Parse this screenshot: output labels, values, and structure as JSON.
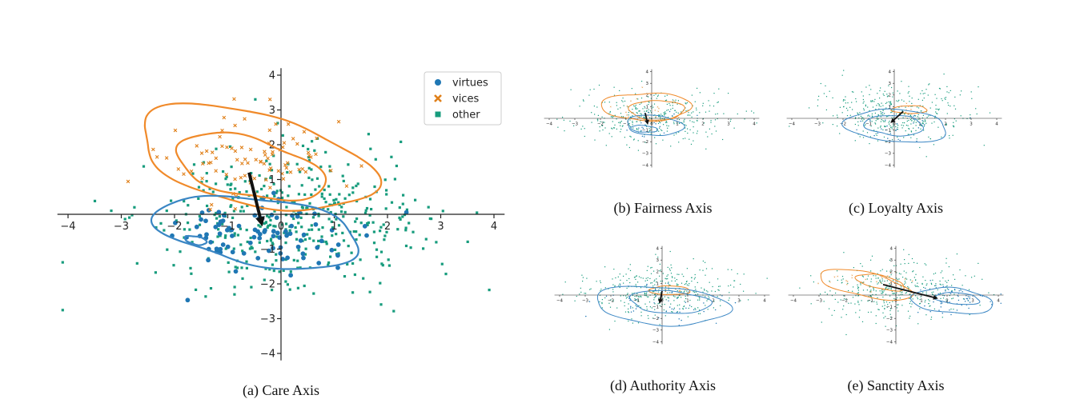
{
  "colors": {
    "virtues": "#1f77b4",
    "vices": "#e0801a",
    "other": "#179c7d",
    "virtue_contour": "#3a86c4",
    "vice_contour": "#f08a2a",
    "arrow": "#111111",
    "axis": "#222222"
  },
  "legend": {
    "items": [
      {
        "label": "virtues",
        "marker": "circle",
        "color": "#1f77b4"
      },
      {
        "label": "vices",
        "marker": "x",
        "color": "#e0801a"
      },
      {
        "label": "other",
        "marker": "square",
        "color": "#179c7d"
      }
    ]
  },
  "chart_data": [
    {
      "type": "scatter",
      "id": "care",
      "caption": "(a) Care Axis",
      "xlim": [
        -4.2,
        4.2
      ],
      "ylim": [
        -4.2,
        4.2
      ],
      "xticks": [
        -4,
        -3,
        -2,
        -1,
        0,
        1,
        2,
        3,
        4
      ],
      "yticks": [
        -4,
        -3,
        -2,
        -1,
        1,
        2,
        3,
        4
      ],
      "tick_labels": {
        "x": [
          "−4",
          "−3",
          "−2",
          "−1",
          "0",
          "1",
          "2",
          "3",
          "4"
        ],
        "y": [
          "−4",
          "−3",
          "−2",
          "−1",
          "1",
          "2",
          "3",
          "4"
        ]
      },
      "legend": true,
      "arrow": {
        "from": [
          -0.6,
          1.2
        ],
        "to": [
          -0.35,
          -0.35
        ]
      },
      "vices_contours": [
        {
          "center": [
            -0.5,
            1.6
          ],
          "rx": 2.2,
          "ry": 1.35,
          "rotate": -25
        },
        {
          "center": [
            -0.6,
            1.35
          ],
          "rx": 1.4,
          "ry": 0.85,
          "rotate": -25
        }
      ],
      "virtues_contours": [
        {
          "center": [
            -0.4,
            -0.5
          ],
          "rx": 1.85,
          "ry": 1.0,
          "rotate": -15
        },
        {
          "center": [
            -1.6,
            -0.75
          ],
          "rx": 0.2,
          "ry": 0.12,
          "rotate": -20
        }
      ],
      "clouds": {
        "other": {
          "center": [
            0.1,
            -0.2
          ],
          "sd": [
            1.3,
            0.95
          ],
          "n": 420
        },
        "virtues": {
          "center": [
            -0.4,
            -0.55
          ],
          "sd": [
            0.9,
            0.55
          ],
          "n": 90
        },
        "vices": {
          "center": [
            -0.55,
            1.55
          ],
          "sd": [
            0.85,
            0.6
          ],
          "n": 90
        }
      }
    },
    {
      "type": "scatter",
      "id": "fairness",
      "caption": "(b) Fairness Axis",
      "xlim": [
        -4.2,
        4.2
      ],
      "ylim": [
        -4.2,
        4.2
      ],
      "xticks": [
        -4,
        -3,
        -2,
        -1,
        0,
        1,
        2,
        3,
        4
      ],
      "yticks": [
        -4,
        -3,
        -2,
        -1,
        1,
        2,
        3,
        4
      ],
      "tick_labels": {
        "x": [
          "−4",
          "−3",
          "−2",
          "−1",
          "0",
          "1",
          "2",
          "3",
          "4"
        ],
        "y": [
          "−4",
          "−3",
          "−2",
          "−1",
          "1",
          "2",
          "3",
          "4"
        ]
      },
      "arrow": {
        "from": [
          -0.25,
          0.45
        ],
        "to": [
          -0.15,
          -0.55
        ]
      },
      "vices_contours": [
        {
          "center": [
            -0.2,
            1.0
          ],
          "rx": 1.65,
          "ry": 1.25,
          "rotate": 0
        },
        {
          "center": [
            0.2,
            0.7
          ],
          "rx": 1.0,
          "ry": 0.9,
          "rotate": 0
        }
      ],
      "virtues_contours": [
        {
          "center": [
            0.1,
            -0.6
          ],
          "rx": 1.05,
          "ry": 0.9,
          "rotate": -15
        },
        {
          "center": [
            -0.3,
            -0.9
          ],
          "rx": 0.5,
          "ry": 0.3,
          "rotate": -10
        }
      ],
      "clouds": {
        "other": {
          "center": [
            0.0,
            0.1
          ],
          "sd": [
            1.4,
            1.1
          ],
          "n": 380
        },
        "virtues": {
          "center": [
            0.0,
            -0.6
          ],
          "sd": [
            0.6,
            0.6
          ],
          "n": 20
        },
        "vices": {
          "center": [
            -0.2,
            0.9
          ],
          "sd": [
            0.7,
            0.7
          ],
          "n": 20
        }
      }
    },
    {
      "type": "scatter",
      "id": "loyalty",
      "caption": "(c) Loyalty Axis",
      "xlim": [
        -4.2,
        4.2
      ],
      "ylim": [
        -4.2,
        4.2
      ],
      "xticks": [
        -4,
        -3,
        -2,
        -1,
        0,
        1,
        2,
        3,
        4
      ],
      "yticks": [
        -4,
        -3,
        -2,
        -1,
        1,
        2,
        3,
        4
      ],
      "tick_labels": {
        "x": [
          "−4",
          "−3",
          "−2",
          "−1",
          "0",
          "1",
          "2",
          "3",
          "4"
        ],
        "y": [
          "−4",
          "−3",
          "−2",
          "−1",
          "1",
          "2",
          "3",
          "4"
        ]
      },
      "arrow": {
        "from": [
          0.35,
          0.6
        ],
        "to": [
          -0.15,
          -0.4
        ]
      },
      "vices_contours": [
        {
          "center": [
            0.6,
            0.75
          ],
          "rx": 0.65,
          "ry": 0.35,
          "rotate": 0
        }
      ],
      "virtues_contours": [
        {
          "center": [
            0.1,
            -0.65
          ],
          "rx": 1.9,
          "ry": 1.45,
          "rotate": -10
        },
        {
          "center": [
            0.0,
            -0.6
          ],
          "rx": 1.1,
          "ry": 0.9,
          "rotate": -10
        }
      ],
      "clouds": {
        "other": {
          "center": [
            0.0,
            0.4
          ],
          "sd": [
            1.4,
            1.2
          ],
          "n": 380
        },
        "virtues": {
          "center": [
            0.0,
            -0.6
          ],
          "sd": [
            0.9,
            0.7
          ],
          "n": 30
        },
        "vices": {
          "center": [
            0.6,
            0.75
          ],
          "sd": [
            0.3,
            0.2
          ],
          "n": 8
        }
      }
    },
    {
      "type": "scatter",
      "id": "authority",
      "caption": "(d) Authority Axis",
      "xlim": [
        -4.2,
        4.2
      ],
      "ylim": [
        -4.2,
        4.2
      ],
      "xticks": [
        -4,
        -3,
        -2,
        -1,
        0,
        1,
        2,
        3,
        4
      ],
      "yticks": [
        -4,
        -3,
        -2,
        -1,
        1,
        2,
        3,
        4
      ],
      "tick_labels": {
        "x": [
          "−4",
          "−3",
          "−2",
          "−1",
          "0",
          "1",
          "2",
          "3",
          "4"
        ],
        "y": [
          "−4",
          "−3",
          "−2",
          "−1",
          "1",
          "2",
          "3",
          "4"
        ]
      },
      "arrow": {
        "from": [
          0.0,
          0.35
        ],
        "to": [
          -0.1,
          -0.75
        ]
      },
      "vices_contours": [
        {
          "center": [
            0.3,
            0.4
          ],
          "rx": 0.75,
          "ry": 0.4,
          "rotate": 0
        }
      ],
      "virtues_contours": [
        {
          "center": [
            0.0,
            -0.9
          ],
          "rx": 2.5,
          "ry": 1.7,
          "rotate": -8
        },
        {
          "center": [
            0.3,
            -0.6
          ],
          "rx": 1.5,
          "ry": 1.0,
          "rotate": -8
        }
      ],
      "clouds": {
        "other": {
          "center": [
            0.0,
            0.4
          ],
          "sd": [
            1.4,
            1.2
          ],
          "n": 380
        },
        "virtues": {
          "center": [
            0.0,
            -0.9
          ],
          "sd": [
            1.2,
            0.8
          ],
          "n": 50
        },
        "vices": {
          "center": [
            0.3,
            0.4
          ],
          "sd": [
            0.35,
            0.2
          ],
          "n": 8
        }
      }
    },
    {
      "type": "scatter",
      "id": "sanctity",
      "caption": "(e) Sanctity Axis",
      "xlim": [
        -4.2,
        4.2
      ],
      "ylim": [
        -4.2,
        4.2
      ],
      "xticks": [
        -4,
        -3,
        -2,
        -1,
        0,
        1,
        2,
        3,
        4
      ],
      "yticks": [
        -4,
        -3,
        -2,
        -1,
        1,
        2,
        3,
        4
      ],
      "tick_labels": {
        "x": [
          "−4",
          "−3",
          "−2",
          "−1",
          "0",
          "1",
          "2",
          "3",
          "4"
        ],
        "y": [
          "−4",
          "−3",
          "−2",
          "−1",
          "1",
          "2",
          "3",
          "4"
        ]
      },
      "arrow": {
        "from": [
          -0.5,
          0.9
        ],
        "to": [
          1.65,
          -0.3
        ]
      },
      "vices_contours": [
        {
          "center": [
            -1.2,
            0.9
          ],
          "rx": 1.9,
          "ry": 1.0,
          "rotate": -30
        },
        {
          "center": [
            -0.6,
            1.1
          ],
          "rx": 1.0,
          "ry": 0.55,
          "rotate": -30
        }
      ],
      "virtues_contours": [
        {
          "center": [
            2.2,
            -0.5
          ],
          "rx": 1.55,
          "ry": 1.1,
          "rotate": -10
        },
        {
          "center": [
            2.4,
            -0.3
          ],
          "rx": 0.85,
          "ry": 0.5,
          "rotate": -10
        }
      ],
      "clouds": {
        "other": {
          "center": [
            0.0,
            0.4
          ],
          "sd": [
            1.4,
            1.2
          ],
          "n": 380
        },
        "virtues": {
          "center": [
            2.2,
            -0.4
          ],
          "sd": [
            0.8,
            0.6
          ],
          "n": 60
        },
        "vices": {
          "center": [
            -0.8,
            1.0
          ],
          "sd": [
            0.8,
            0.5
          ],
          "n": 30
        }
      }
    }
  ]
}
